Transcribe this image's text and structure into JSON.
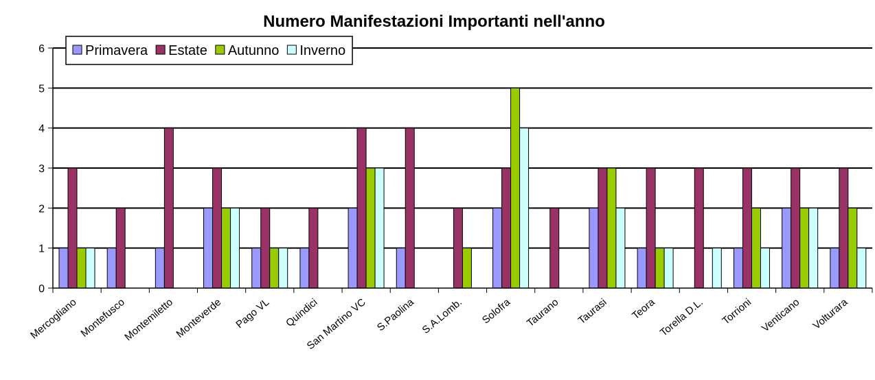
{
  "chart_data": {
    "type": "bar",
    "title": "Numero Manifestazioni Importanti nell'anno",
    "xlabel": "",
    "ylabel": "",
    "ylim": [
      0,
      6
    ],
    "yticks": [
      "0",
      "1",
      "2",
      "3",
      "4",
      "5",
      "6"
    ],
    "grid": "horizontal",
    "legend_position": "top-left",
    "categories": [
      "Mercogliano",
      "Montefusco",
      "Montemiletto",
      "Monteverde",
      "Pago VL",
      "Quindici",
      "San Martino VC",
      "S.Paolina",
      "S.A.Lomb.",
      "Solofra",
      "Taurano",
      "Taurasi",
      "Teora",
      "Torella D.L.",
      "Torrioni",
      "Venticano",
      "Volturara"
    ],
    "series": [
      {
        "name": "Primavera",
        "color": "#9999ff",
        "values": [
          1,
          1,
          1,
          2,
          1,
          1,
          2,
          1,
          0,
          2,
          0,
          2,
          1,
          0,
          1,
          2,
          1
        ]
      },
      {
        "name": "Estate",
        "color": "#993366",
        "values": [
          3,
          2,
          4,
          3,
          2,
          2,
          4,
          4,
          2,
          3,
          2,
          3,
          3,
          3,
          3,
          3,
          3
        ]
      },
      {
        "name": "Autunno",
        "color": "#99cc00",
        "values": [
          1,
          0,
          0,
          2,
          1,
          0,
          3,
          0,
          1,
          5,
          0,
          3,
          1,
          0,
          2,
          2,
          2
        ]
      },
      {
        "name": "Inverno",
        "color": "#ccffff",
        "values": [
          1,
          0,
          0,
          2,
          1,
          0,
          3,
          0,
          0,
          4,
          0,
          2,
          1,
          1,
          1,
          2,
          1
        ]
      }
    ]
  }
}
